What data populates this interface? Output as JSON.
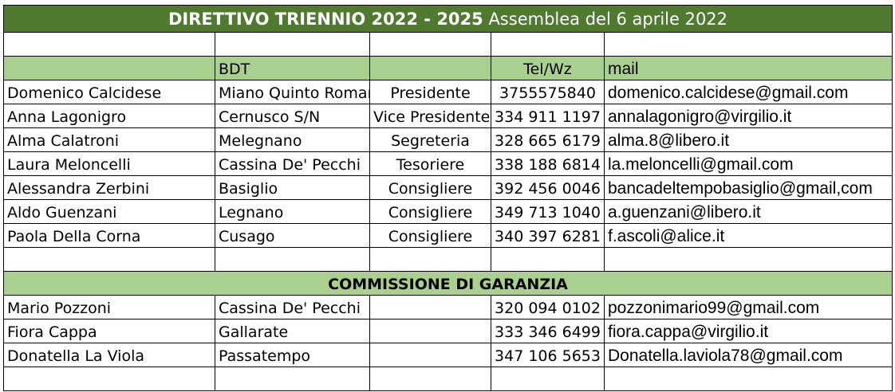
{
  "title": {
    "bold": "DIRETTIVO TRIENNIO 2022 - 2025",
    "rest": " Assemblea del 6 aprile 2022"
  },
  "header": {
    "name": "",
    "bdt": "BDT",
    "role": "",
    "tel": "Tel/Wz",
    "mail": "mail"
  },
  "direttivo": [
    {
      "name": "Domenico Calcidese",
      "bdt": "Miano Quinto Romano",
      "role": "Presidente",
      "tel": "3755575840",
      "mail": "domenico.calcidese@gmail.com"
    },
    {
      "name": "Anna Lagonigro",
      "bdt": "Cernusco S/N",
      "role": "Vice Presidente",
      "tel": "334 911 1197",
      "mail": "annalagonigro@virgilio.it"
    },
    {
      "name": "Alma Calatroni",
      "bdt": "Melegnano",
      "role": "Segreteria",
      "tel": "328 665 6179",
      "mail": "alma.8@libero.it"
    },
    {
      "name": "Laura Meloncelli",
      "bdt": "Cassina De' Pecchi",
      "role": "Tesoriere",
      "tel": "338 188 6814",
      "mail": "la.meloncelli@gmail.com"
    },
    {
      "name": "Alessandra Zerbini",
      "bdt": "Basiglio",
      "role": "Consigliere",
      "tel": "392 456 0046",
      "mail": "bancadeltempobasiglio@gmail,com"
    },
    {
      "name": "Aldo Guenzani",
      "bdt": "Legnano",
      "role": "Consigliere",
      "tel": "349 713 1040",
      "mail": "a.guenzani@libero.it"
    },
    {
      "name": "Paola Della Corna",
      "bdt": "Cusago",
      "role": "Consigliere",
      "tel": "340 397 6281",
      "mail": "f.ascoli@alice.it"
    }
  ],
  "commissione_title": "COMMISSIONE DI GARANZIA",
  "commissione": [
    {
      "name": "Mario Pozzoni",
      "bdt": "Cassina De' Pecchi",
      "role": "",
      "tel": "320 094 0102",
      "mail": "pozzonimario99@gmail.com"
    },
    {
      "name": "Fiora Cappa",
      "bdt": "Gallarate",
      "role": "",
      "tel": "333 346 6499",
      "mail": "fiora.cappa@virgilio.it"
    },
    {
      "name": "Donatella La Viola",
      "bdt": "Passatempo",
      "role": "",
      "tel": "347 106 5653",
      "mail": "Donatella.laviola78@gmail.com"
    }
  ]
}
